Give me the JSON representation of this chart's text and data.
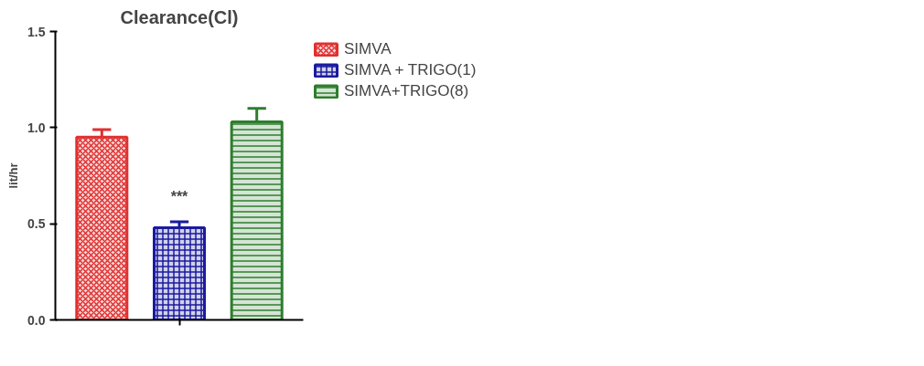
{
  "chart_data": {
    "type": "bar",
    "title": "Clearance(Cl)",
    "ylabel": "lit/hr",
    "categories": [
      null,
      null,
      null
    ],
    "series": [
      {
        "name": "SIMVA",
        "color": "#e03030",
        "values": [
          0.95,
          null,
          null
        ],
        "errors": [
          [
            0.95,
            0.99
          ],
          null,
          null
        ]
      },
      {
        "name": "SIMVA + TRIGO(1)",
        "color": "#1a1aa0",
        "values": [
          null,
          0.48,
          null
        ],
        "errors": [
          null,
          [
            0.48,
            0.51
          ],
          null
        ]
      },
      {
        "name": "SIMVA+TRIGO(8)",
        "color": "#2e7d2e",
        "values": [
          null,
          null,
          1.03
        ],
        "errors": [
          null,
          null,
          [
            1.03,
            1.1
          ]
        ]
      }
    ],
    "ylim": [
      0,
      1.5
    ],
    "yticks": [
      {
        "value": 0,
        "label": "0.0"
      },
      {
        "value": 0.5,
        "label": "0.5"
      },
      {
        "value": 1,
        "label": "1.0"
      },
      1.5
    ],
    "annotations": [
      "***"
    ],
    "grid": false,
    "legend": "right"
  }
}
